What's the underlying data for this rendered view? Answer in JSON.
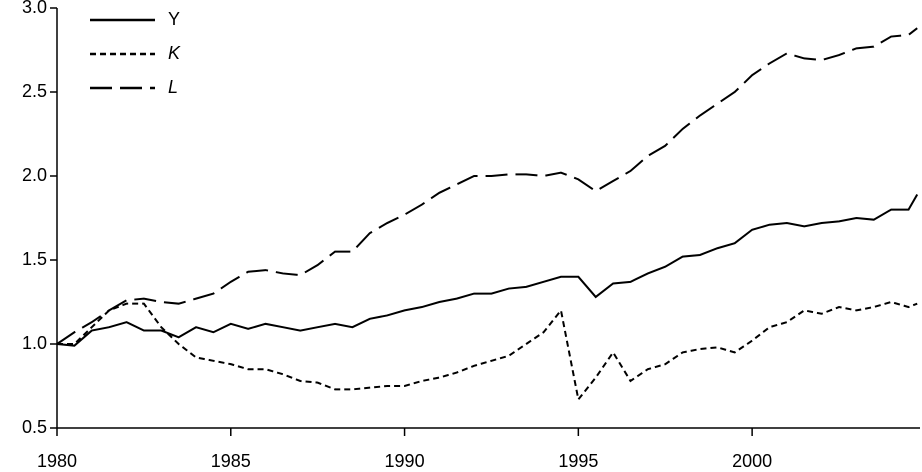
{
  "chart_data": {
    "type": "line",
    "x": [
      1980,
      1980.5,
      1981,
      1981.5,
      1982,
      1982.5,
      1983,
      1983.5,
      1984,
      1984.5,
      1985,
      1985.5,
      1986,
      1986.5,
      1987,
      1987.5,
      1988,
      1988.5,
      1989,
      1989.5,
      1990,
      1990.5,
      1991,
      1991.5,
      1992,
      1992.5,
      1993,
      1993.5,
      1994,
      1994.5,
      1995,
      1995.5,
      1996,
      1996.5,
      1997,
      1997.5,
      1998,
      1998.5,
      1999,
      1999.5,
      2000,
      2000.5,
      2001,
      2001.5,
      2002,
      2002.5,
      2003,
      2003.5,
      2004,
      2004.5,
      2004.75
    ],
    "series": [
      {
        "name": "Y",
        "color": "#000000",
        "dash": "solid",
        "values": [
          1.0,
          0.99,
          1.08,
          1.1,
          1.13,
          1.08,
          1.08,
          1.04,
          1.1,
          1.07,
          1.12,
          1.09,
          1.12,
          1.1,
          1.08,
          1.1,
          1.12,
          1.1,
          1.15,
          1.17,
          1.2,
          1.22,
          1.25,
          1.27,
          1.3,
          1.3,
          1.33,
          1.34,
          1.37,
          1.4,
          1.4,
          1.28,
          1.36,
          1.37,
          1.42,
          1.46,
          1.52,
          1.53,
          1.57,
          1.6,
          1.68,
          1.71,
          1.72,
          1.7,
          1.72,
          1.73,
          1.75,
          1.74,
          1.8,
          1.8,
          1.89
        ]
      },
      {
        "name": "K",
        "color": "#000000",
        "dash": "short",
        "values": [
          1.0,
          1.0,
          1.1,
          1.2,
          1.24,
          1.24,
          1.1,
          1.0,
          0.92,
          0.9,
          0.88,
          0.85,
          0.85,
          0.82,
          0.78,
          0.77,
          0.73,
          0.73,
          0.74,
          0.75,
          0.75,
          0.78,
          0.8,
          0.83,
          0.87,
          0.9,
          0.93,
          1.0,
          1.07,
          1.2,
          0.67,
          0.8,
          0.95,
          0.78,
          0.85,
          0.88,
          0.95,
          0.97,
          0.98,
          0.95,
          1.02,
          1.1,
          1.13,
          1.2,
          1.18,
          1.22,
          1.2,
          1.22,
          1.25,
          1.22,
          1.24
        ]
      },
      {
        "name": "L",
        "color": "#000000",
        "dash": "long",
        "values": [
          1.0,
          1.07,
          1.13,
          1.2,
          1.26,
          1.27,
          1.25,
          1.24,
          1.27,
          1.3,
          1.37,
          1.43,
          1.44,
          1.42,
          1.41,
          1.47,
          1.55,
          1.55,
          1.66,
          1.72,
          1.77,
          1.83,
          1.9,
          1.95,
          2.0,
          2.0,
          2.01,
          2.01,
          2.0,
          2.02,
          1.98,
          1.91,
          1.97,
          2.03,
          2.12,
          2.18,
          2.28,
          2.36,
          2.43,
          2.5,
          2.6,
          2.67,
          2.73,
          2.7,
          2.69,
          2.72,
          2.76,
          2.77,
          2.83,
          2.84,
          2.88
        ]
      }
    ],
    "xlim": [
      1980,
      2004.83
    ],
    "xticks": [
      1980,
      1985,
      1990,
      1995,
      2000
    ],
    "ylim": [
      0.5,
      3.0
    ],
    "yticks": [
      0.5,
      {
        "value": 1.0,
        "label": "1.0"
      },
      1.5,
      {
        "value": 2.0,
        "label": "2.0"
      },
      2.5,
      {
        "value": 3.0,
        "label": "3.0"
      }
    ],
    "legend": "upper-left"
  }
}
